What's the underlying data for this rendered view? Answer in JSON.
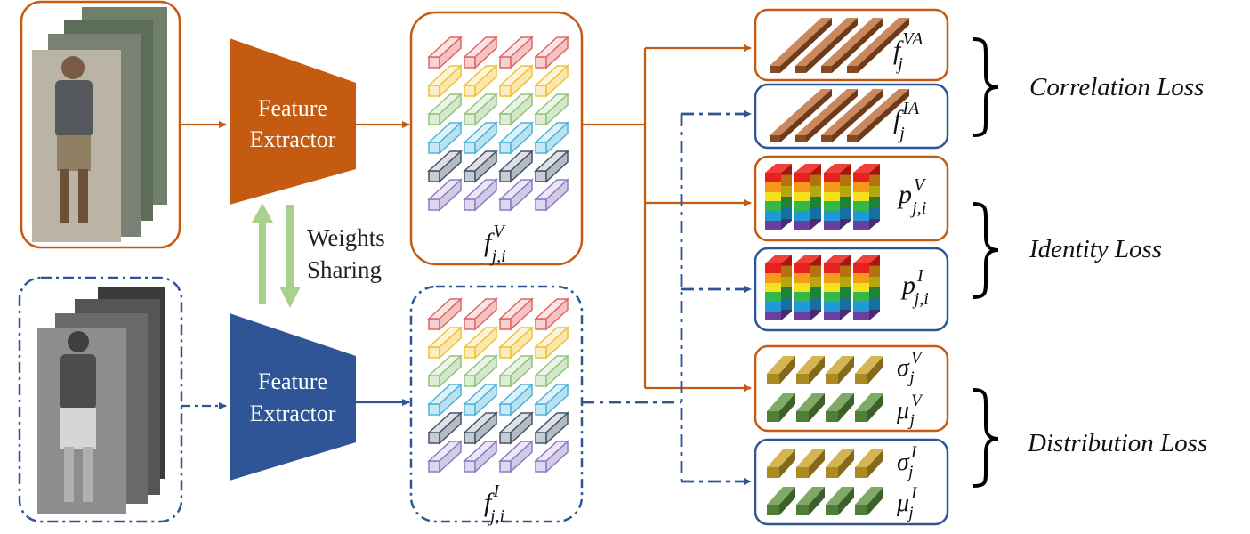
{
  "extractor_visible": {
    "line1": "Feature",
    "line2": "Extractor",
    "color": "#C55A11"
  },
  "extractor_infrared": {
    "line1": "Feature",
    "line2": "Extractor",
    "color": "#2F5597"
  },
  "weights_sharing": {
    "line1": "Weights",
    "line2": "Sharing",
    "arrow_color": "#A9D18E"
  },
  "feature_maps": {
    "visible": {
      "base": "f",
      "sup": "V",
      "sub": "j,i"
    },
    "infrared": {
      "base": "f",
      "sup": "I",
      "sub": "j,i"
    },
    "row_colors": [
      "#E06666",
      "#F1C232",
      "#93C47D",
      "#4FB3D9",
      "#44546A",
      "#8E7CC3"
    ]
  },
  "outputs": {
    "f_va": {
      "base": "f",
      "sup": "VA",
      "sub": "j"
    },
    "f_ia": {
      "base": "f",
      "sup": "IA",
      "sub": "j"
    },
    "p_v": {
      "base": "p",
      "sup": "V",
      "sub": "j,i"
    },
    "p_i": {
      "base": "p",
      "sup": "I",
      "sub": "j,i"
    },
    "sigma_v": {
      "base": "σ",
      "sup": "V",
      "sub": "j"
    },
    "mu_v": {
      "base": "μ",
      "sup": "V",
      "sub": "j"
    },
    "sigma_i": {
      "base": "σ",
      "sup": "I",
      "sub": "j"
    },
    "mu_i": {
      "base": "μ",
      "sup": "I",
      "sub": "j"
    }
  },
  "losses": {
    "correlation": "Correlation Loss",
    "identity": "Identity Loss",
    "distribution": "Distribution Loss"
  },
  "colors": {
    "visible": "#C55A11",
    "infrared": "#2F5597",
    "bar": "#B8602A",
    "sigma": "#C9A227",
    "mu": "#5E9440"
  }
}
